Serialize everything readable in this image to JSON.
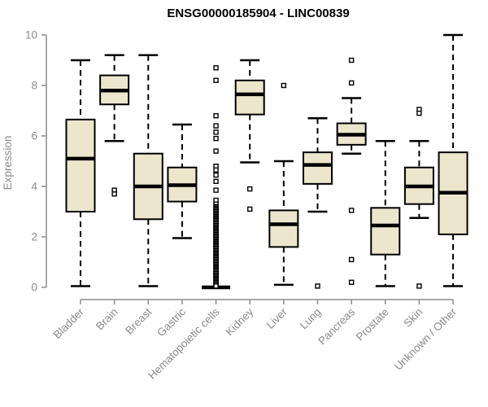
{
  "colors": {
    "background": "#ffffff",
    "box_fill": "#ece6cd",
    "box_border": "#000000",
    "median": "#000000",
    "whisker": "#000000",
    "outlier_stroke": "#000000",
    "outlier_fill": "#ffffff",
    "axis": "#8c8c8c",
    "tick_label": "#8a8a8a",
    "title": "#000000"
  },
  "chart_data": {
    "type": "boxplot",
    "title": "ENSG00000185904 - LINC00839",
    "xlabel": "",
    "ylabel": "Expression",
    "ylim": [
      0,
      10
    ],
    "yticks": [
      0,
      2,
      4,
      6,
      8,
      10
    ],
    "grid": false,
    "legend": false,
    "categories": [
      "Bladder",
      "Brain",
      "Breast",
      "Gastric",
      "Hematopoietic cells",
      "Kidney",
      "Liver",
      "Lung",
      "Pancreas",
      "Prostate",
      "Skin",
      "Unknown / Other"
    ],
    "series": [
      {
        "name": "Bladder",
        "whisker_low": 0.05,
        "q1": 3.0,
        "median": 5.1,
        "q3": 6.65,
        "whisker_high": 9.0,
        "outliers": []
      },
      {
        "name": "Brain",
        "whisker_low": 5.8,
        "q1": 7.25,
        "median": 7.8,
        "q3": 8.4,
        "whisker_high": 9.2,
        "outliers": [
          3.85,
          3.7
        ]
      },
      {
        "name": "Breast",
        "whisker_low": 0.05,
        "q1": 2.7,
        "median": 4.0,
        "q3": 5.3,
        "whisker_high": 9.2,
        "outliers": []
      },
      {
        "name": "Gastric",
        "whisker_low": 1.95,
        "q1": 3.4,
        "median": 4.05,
        "q3": 4.75,
        "whisker_high": 6.45,
        "outliers": []
      },
      {
        "name": "Hematopoietic cells",
        "whisker_low": 0,
        "q1": 0,
        "median": 0,
        "q3": 0,
        "whisker_high": 0,
        "outliers": [
          8.7,
          8.2,
          6.8,
          6.4,
          6.15,
          5.9,
          5.4,
          4.8,
          4.65,
          4.45,
          4.2,
          3.85,
          3.45,
          3.3,
          3.2,
          3.15,
          3.1,
          3.05,
          3.0,
          2.95,
          2.9,
          2.85,
          2.8,
          2.75,
          2.7,
          2.65,
          2.6,
          2.55,
          2.5,
          2.45,
          2.4,
          2.35,
          2.3,
          2.25,
          2.2,
          2.15,
          2.1,
          2.05,
          2.0,
          1.95,
          1.9,
          1.85,
          1.8,
          1.75,
          1.7,
          1.65,
          1.6,
          1.55,
          1.5,
          1.45,
          1.4,
          1.35,
          1.3,
          1.25,
          1.2,
          1.15,
          1.1,
          1.05,
          1.0,
          0.95,
          0.9,
          0.85,
          0.8,
          0.75,
          0.7,
          0.65,
          0.6,
          0.55,
          0.5,
          0.45,
          0.4,
          0.35,
          0.3,
          0.25,
          0.2,
          0.15,
          0.1,
          0.05
        ]
      },
      {
        "name": "Kidney",
        "whisker_low": 4.95,
        "q1": 6.85,
        "median": 7.65,
        "q3": 8.2,
        "whisker_high": 9.0,
        "outliers": [
          3.9,
          3.1
        ]
      },
      {
        "name": "Liver",
        "whisker_low": 0.1,
        "q1": 1.6,
        "median": 2.5,
        "q3": 3.05,
        "whisker_high": 5.0,
        "outliers": [
          8.0
        ]
      },
      {
        "name": "Lung",
        "whisker_low": 3.0,
        "q1": 4.1,
        "median": 4.85,
        "q3": 5.35,
        "whisker_high": 6.7,
        "outliers": [
          0.05
        ]
      },
      {
        "name": "Pancreas",
        "whisker_low": 5.3,
        "q1": 5.65,
        "median": 6.05,
        "q3": 6.5,
        "whisker_high": 7.5,
        "outliers": [
          9.0,
          8.1,
          3.05,
          1.1,
          0.2
        ]
      },
      {
        "name": "Prostate",
        "whisker_low": 0.05,
        "q1": 1.3,
        "median": 2.45,
        "q3": 3.15,
        "whisker_high": 5.8,
        "outliers": []
      },
      {
        "name": "Skin",
        "whisker_low": 2.75,
        "q1": 3.3,
        "median": 4.0,
        "q3": 4.75,
        "whisker_high": 5.8,
        "outliers": [
          7.05,
          6.9,
          0.05
        ]
      },
      {
        "name": "Unknown / Other",
        "whisker_low": 0.05,
        "q1": 2.1,
        "median": 3.75,
        "q3": 5.35,
        "whisker_high": 10.0,
        "outliers": []
      }
    ]
  }
}
